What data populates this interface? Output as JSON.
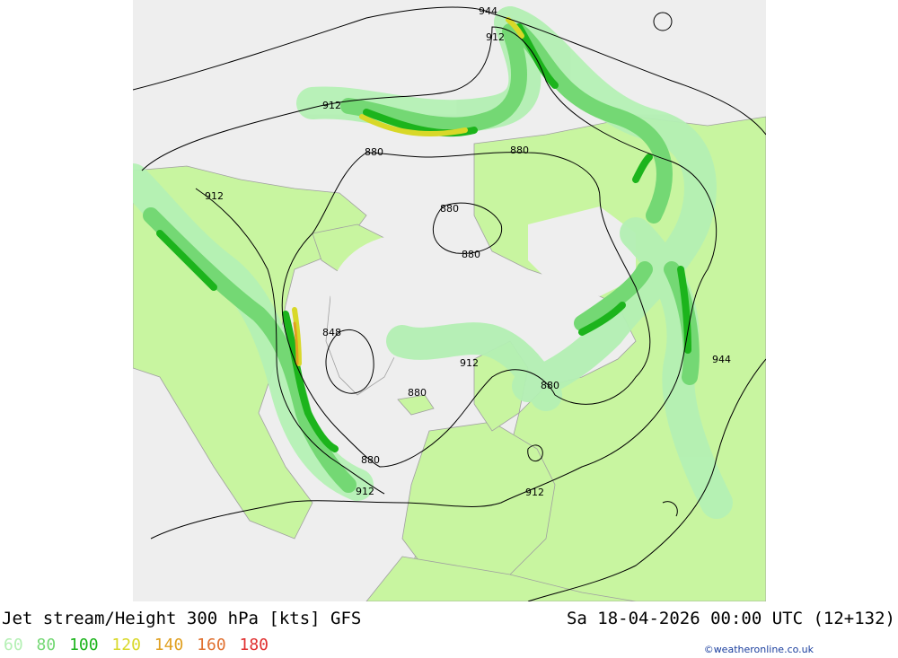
{
  "map": {
    "title": "Jet stream/Height 300 hPa [kts] GFS",
    "datetime": "Sa 18-04-2026 00:00 UTC (12+132)",
    "credit": "©weatheronline.co.uk",
    "legend": [
      {
        "label": "60",
        "color": "#b4f0b4"
      },
      {
        "label": "80",
        "color": "#74d874"
      },
      {
        "label": "100",
        "color": "#1cb41c"
      },
      {
        "label": "120",
        "color": "#d8d828"
      },
      {
        "label": "140",
        "color": "#e0a020"
      },
      {
        "label": "160",
        "color": "#e07030"
      },
      {
        "label": "180",
        "color": "#e03030"
      }
    ],
    "contour_labels": [
      {
        "text": "944"
      },
      {
        "text": "912"
      },
      {
        "text": "912"
      },
      {
        "text": "880"
      },
      {
        "text": "880"
      },
      {
        "text": "912"
      },
      {
        "text": "880"
      },
      {
        "text": "880"
      },
      {
        "text": "848"
      },
      {
        "text": "912"
      },
      {
        "text": "880"
      },
      {
        "text": "880"
      },
      {
        "text": "880"
      },
      {
        "text": "944"
      },
      {
        "text": "912"
      },
      {
        "text": "912"
      }
    ],
    "colors": {
      "land": "#c8f5a0",
      "sea": "#eeeeee",
      "coast": "#a0a0a0",
      "contour": "#000000"
    }
  }
}
